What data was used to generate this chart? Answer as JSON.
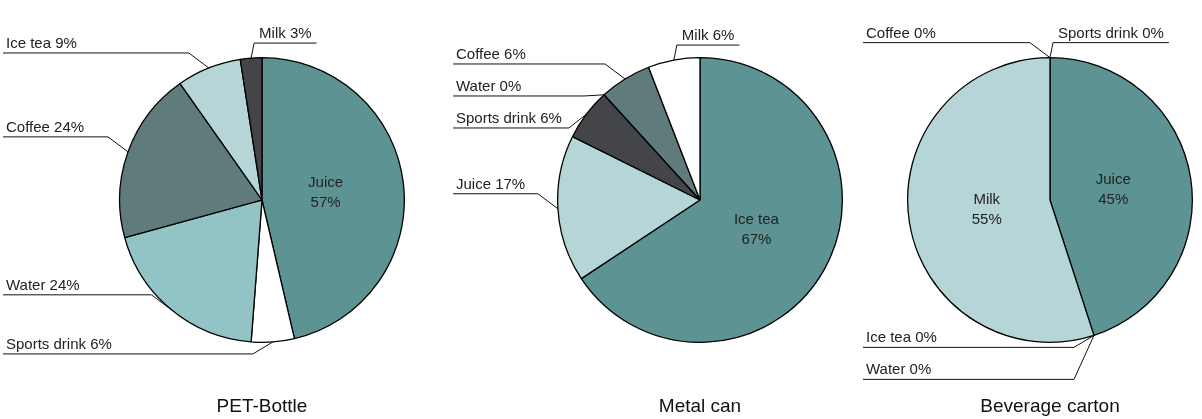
{
  "chart_data": [
    {
      "type": "pie",
      "title": "PET-Bottle",
      "categories": [
        "Juice",
        "Sports drink",
        "Water",
        "Coffee",
        "Ice tea",
        "Milk"
      ],
      "values": [
        57,
        6,
        24,
        24,
        9,
        3
      ],
      "colors": [
        "#5e9393",
        "#ffffff",
        "#93c4c5",
        "#5f7b7c",
        "#b6d5d6",
        "#444548"
      ],
      "value_labels": [
        "57%",
        "6%",
        "24%",
        "24%",
        "9%",
        "3%"
      ]
    },
    {
      "type": "pie",
      "title": "Metal can",
      "categories": [
        "Ice tea",
        "Juice",
        "Sports drink",
        "Water",
        "Coffee",
        "Milk"
      ],
      "values": [
        67,
        17,
        6,
        0,
        6,
        6
      ],
      "colors": [
        "#5e9393",
        "#b6d5d6",
        "#444548",
        "#93c4c5",
        "#5f7b7c",
        "#ffffff"
      ],
      "value_labels": [
        "67%",
        "17%",
        "6%",
        "0%",
        "6%",
        "6%"
      ]
    },
    {
      "type": "pie",
      "title": "Beverage carton",
      "categories": [
        "Juice",
        "Ice tea",
        "Water",
        "Milk",
        "Coffee",
        "Sports drink"
      ],
      "values": [
        45,
        0,
        0,
        55,
        0,
        0
      ],
      "colors": [
        "#5e9393",
        "#b6d5d6",
        "#93c4c5",
        "#b6d5d6",
        "#5f7b7c",
        "#ffffff"
      ],
      "value_labels": [
        "45%",
        "0%",
        "0%",
        "55%",
        "0%",
        "0%"
      ]
    }
  ]
}
